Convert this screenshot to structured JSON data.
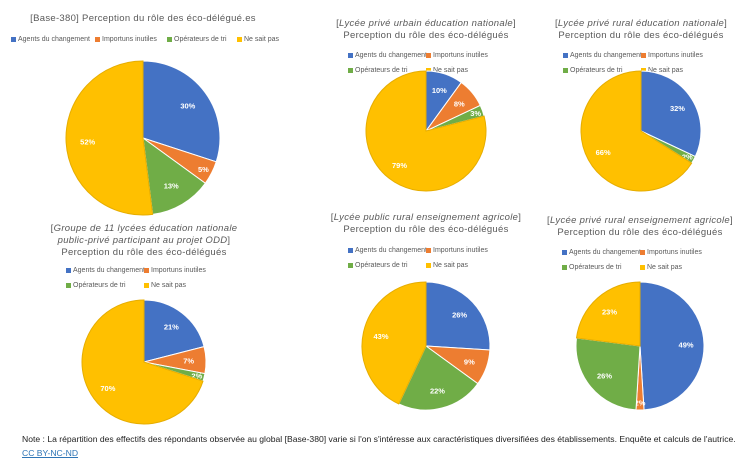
{
  "colors": {
    "Agents du changement": "#4472c4",
    "Importuns inutiles": "#ed7d31",
    "Opérateurs de tri": "#70ad47",
    "Ne sait pas": "#ffc000"
  },
  "chart_data": [
    {
      "type": "pie",
      "title": [
        "[Base-380] Perception du rôle des éco-délégué.es"
      ],
      "categories": [
        "Agents du changement",
        "Importuns inutiles",
        "Opérateurs de tri",
        "Ne sait pas"
      ],
      "values": [
        30,
        5,
        13,
        52
      ],
      "unit": "%"
    },
    {
      "type": "pie",
      "title": [
        "[Lycée privé urbain éducation nationale]",
        "Perception du rôle des éco-délégués"
      ],
      "categories": [
        "Agents du changement",
        "Importuns inutiles",
        "Opérateurs de tri",
        "Ne sait pas"
      ],
      "values": [
        10,
        8,
        3,
        79
      ],
      "unit": "%"
    },
    {
      "type": "pie",
      "title": [
        "[Lycée privé rural éducation nationale]",
        "Perception du rôle des éco-délégués"
      ],
      "categories": [
        "Agents du changement",
        "Importuns inutiles",
        "Opérateurs de tri",
        "Ne sait pas"
      ],
      "values": [
        32,
        0,
        2,
        66
      ],
      "unit": "%"
    },
    {
      "type": "pie",
      "title": [
        "[Groupe de 11 lycées éducation nationale",
        "public-privé participant au projet ODD]",
        "Perception du rôle des éco-délégués"
      ],
      "categories": [
        "Agents du changement",
        "Importuns inutiles",
        "Opérateurs de tri",
        "Ne sait pas"
      ],
      "values": [
        21,
        7,
        2,
        70
      ],
      "unit": "%"
    },
    {
      "type": "pie",
      "title": [
        "[Lycée public rural enseignement agricole]",
        "Perception du rôle des éco-délégués"
      ],
      "categories": [
        "Agents du changement",
        "Importuns inutiles",
        "Opérateurs de tri",
        "Ne sait pas"
      ],
      "values": [
        26,
        9,
        22,
        43
      ],
      "unit": "%"
    },
    {
      "type": "pie",
      "title": [
        "[Lycée privé rural enseignement agricole]",
        "Perception du rôle des éco-délégués"
      ],
      "categories": [
        "Agents du changement",
        "Importuns inutiles",
        "Opérateurs de tri",
        "Ne sait pas"
      ],
      "values": [
        49,
        2,
        26,
        23
      ],
      "unit": "%"
    }
  ],
  "note": {
    "text": "Note : La répartition des effectifs des répondants observée au global [Base-380] varie si l'on s'intéresse aux caractéristiques diversifiées des établissements. Enquête et calculs de l'autrice.",
    "link": "CC BY-NC-ND"
  }
}
